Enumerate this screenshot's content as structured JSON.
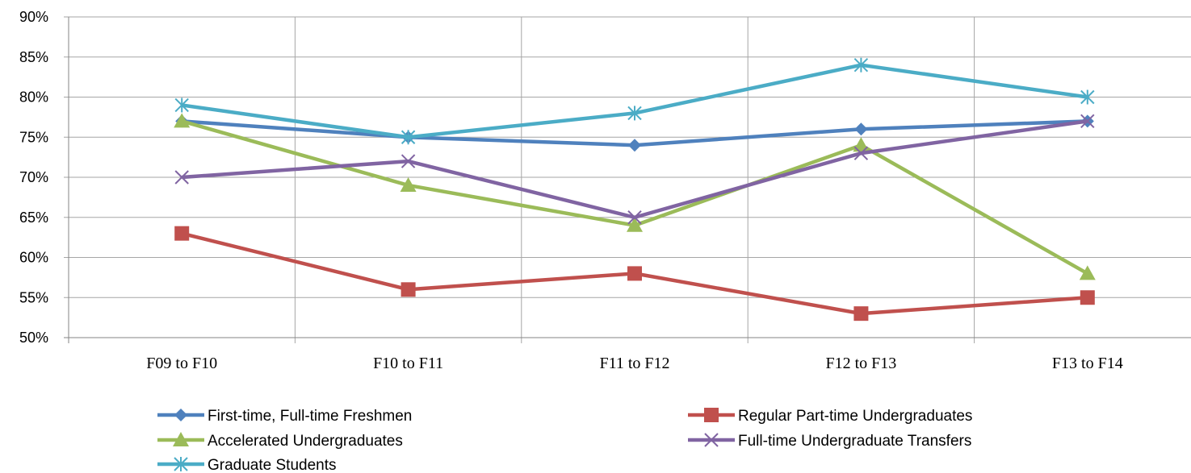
{
  "chart_data": {
    "type": "line",
    "categories": [
      "F09 to F10",
      "F10 to F11",
      "F11 to F12",
      "F12 to F13",
      "F13 to F14"
    ],
    "ylim": [
      50,
      90
    ],
    "y_unit": "%",
    "yticks": [
      "50%",
      "55%",
      "60%",
      "65%",
      "70%",
      "75%",
      "80%",
      "85%",
      "90%"
    ],
    "grid": true,
    "legend_position": "bottom",
    "series": [
      {
        "name": "First-time, Full-time Freshmen",
        "values": [
          77,
          75,
          74,
          76,
          77
        ],
        "color": "#4F81BD",
        "marker": "diamond"
      },
      {
        "name": "Regular Part-time Undergraduates",
        "values": [
          63,
          56,
          58,
          53,
          55
        ],
        "color": "#C0504D",
        "marker": "square"
      },
      {
        "name": "Accelerated Undergraduates",
        "values": [
          77,
          69,
          64,
          74,
          58
        ],
        "color": "#9BBB59",
        "marker": "triangle"
      },
      {
        "name": "Full-time Undergraduate Transfers",
        "values": [
          70,
          72,
          65,
          73,
          77
        ],
        "color": "#8064A2",
        "marker": "x"
      },
      {
        "name": "Graduate Students",
        "values": [
          79,
          75,
          78,
          84,
          80
        ],
        "color": "#4BACC6",
        "marker": "star"
      }
    ]
  }
}
